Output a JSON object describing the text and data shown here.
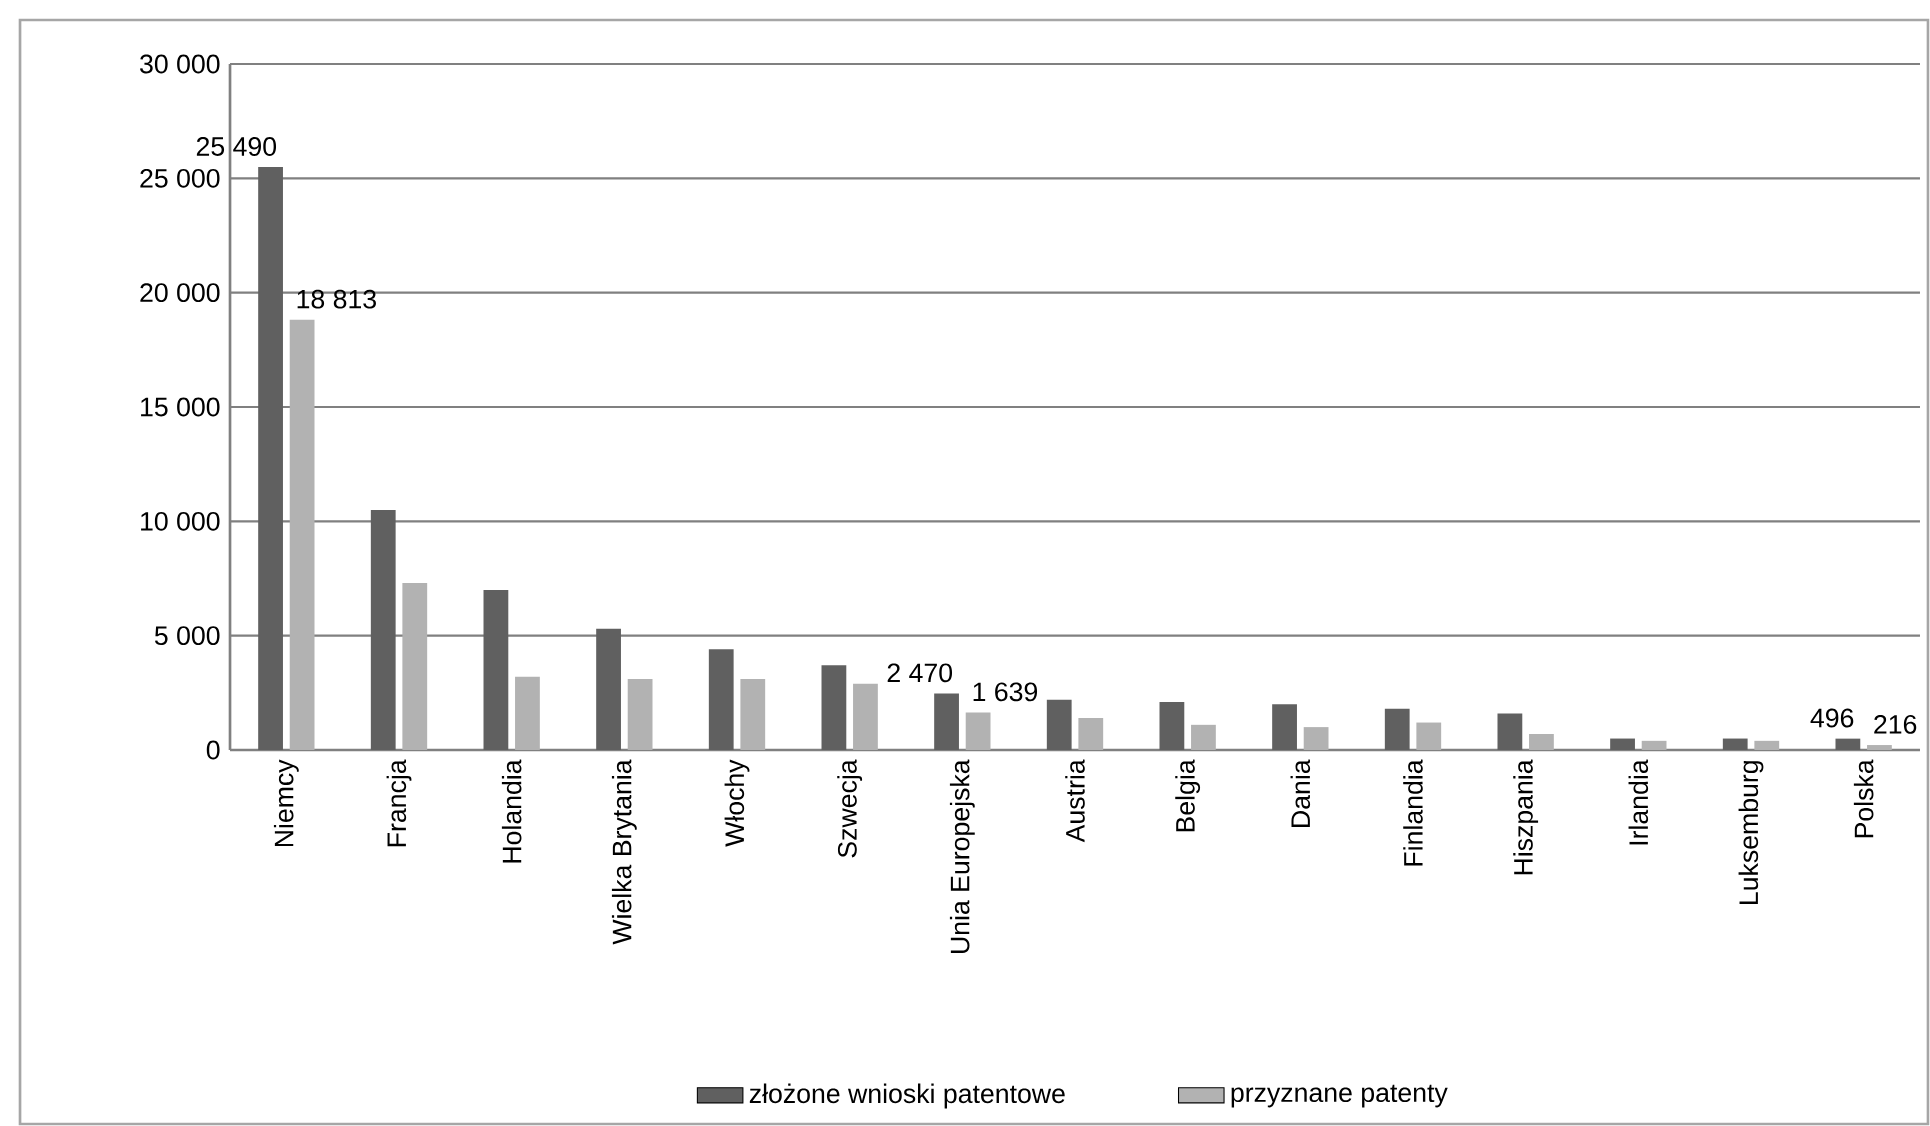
{
  "chart_data": {
    "type": "bar",
    "categories": [
      "Niemcy",
      "Francja",
      "Holandia",
      "Wielka Brytania",
      "Włochy",
      "Szwecja",
      "Unia Europejska",
      "Austria",
      "Belgia",
      "Dania",
      "Finlandia",
      "Hiszpania",
      "Irlandia",
      "Luksemburg",
      "Polska"
    ],
    "series": [
      {
        "name": "złożone wnioski patentowe",
        "color": "#606060",
        "values": [
          25490,
          10500,
          7000,
          5300,
          4400,
          3700,
          2470,
          2200,
          2100,
          2000,
          1800,
          1600,
          500,
          500,
          496
        ],
        "value_labels": [
          "25 490",
          null,
          null,
          null,
          null,
          null,
          "2 470",
          null,
          null,
          null,
          null,
          null,
          null,
          null,
          "496"
        ]
      },
      {
        "name": "przyznane patenty",
        "color": "#b2b2b2",
        "values": [
          18813,
          7300,
          3200,
          3100,
          3100,
          2900,
          1639,
          1400,
          1100,
          1000,
          1200,
          700,
          400,
          400,
          216
        ],
        "value_labels": [
          "18 813",
          null,
          null,
          null,
          null,
          null,
          "1 639",
          null,
          null,
          null,
          null,
          null,
          null,
          null,
          "216"
        ]
      }
    ],
    "ylim": [
      0,
      30000
    ],
    "yticks": [
      {
        "value": 0,
        "label": "0"
      },
      {
        "value": 5000,
        "label": "5 000"
      },
      {
        "value": 10000,
        "label": "10 000"
      },
      {
        "value": 15000,
        "label": "15 000"
      },
      {
        "value": 20000,
        "label": "20 000"
      },
      {
        "value": 25000,
        "label": "25 000"
      },
      {
        "value": 30000,
        "label": "30 000"
      }
    ],
    "grid": "y",
    "legend": "bottom"
  }
}
